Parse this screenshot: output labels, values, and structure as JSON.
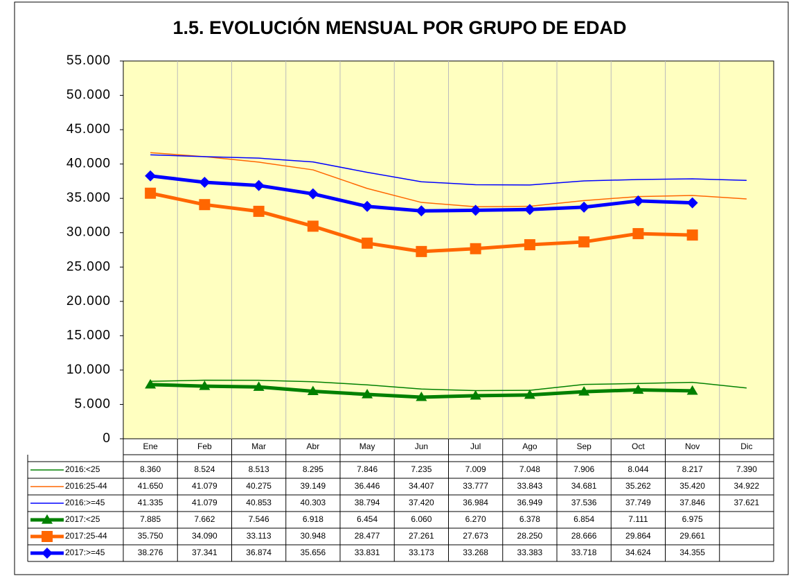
{
  "chart_data": {
    "type": "line",
    "title": "1.5. EVOLUCIÓN MENSUAL POR GRUPO DE EDAD",
    "categories": [
      "Ene",
      "Feb",
      "Mar",
      "Abr",
      "May",
      "Jun",
      "Jul",
      "Ago",
      "Sep",
      "Oct",
      "Nov",
      "Dic"
    ],
    "ylim": [
      0,
      55000
    ],
    "yticks": [
      0,
      {
        "value": 5000,
        "label": "5.000"
      },
      {
        "value": 10000,
        "label": "10.000"
      },
      {
        "value": 15000,
        "label": "15.000"
      },
      {
        "value": 20000,
        "label": "20.000"
      },
      {
        "value": 25000,
        "label": "25.000"
      },
      {
        "value": 30000,
        "label": "30.000"
      },
      {
        "value": 35000,
        "label": "35.000"
      },
      {
        "value": 40000,
        "label": "40.000"
      },
      {
        "value": 45000,
        "label": "45.000"
      },
      {
        "value": 50000,
        "label": "50.000"
      },
      {
        "value": 55000,
        "label": "55.000"
      }
    ],
    "grid": "vertical",
    "plot_background": "#ffffc0",
    "series": [
      {
        "name": "2016:<25",
        "color": "#008000",
        "line_width": 1.5,
        "marker": null,
        "values": [
          8360,
          8524,
          8513,
          8295,
          7846,
          7235,
          7009,
          7048,
          7906,
          8044,
          8217,
          7390
        ],
        "value_labels": [
          "8.360",
          "8.524",
          "8.513",
          "8.295",
          "7.846",
          "7.235",
          "7.009",
          "7.048",
          "7.906",
          "8.044",
          "8.217",
          "7.390"
        ]
      },
      {
        "name": "2016:25-44",
        "color": "#ff6600",
        "line_width": 1.5,
        "marker": null,
        "values": [
          41650,
          41079,
          40275,
          39149,
          36446,
          34407,
          33777,
          33843,
          34681,
          35262,
          35420,
          34922
        ],
        "value_labels": [
          "41.650",
          "41.079",
          "40.275",
          "39.149",
          "36.446",
          "34.407",
          "33.777",
          "33.843",
          "34.681",
          "35.262",
          "35.420",
          "34.922"
        ]
      },
      {
        "name": "2016:>=45",
        "color": "#0000ff",
        "line_width": 1.5,
        "marker": null,
        "values": [
          41335,
          41079,
          40853,
          40303,
          38794,
          37420,
          36984,
          36949,
          37536,
          37749,
          37846,
          37621
        ],
        "value_labels": [
          "41.335",
          "41.079",
          "40.853",
          "40.303",
          "38.794",
          "37.420",
          "36.984",
          "36.949",
          "37.536",
          "37.749",
          "37.846",
          "37.621"
        ]
      },
      {
        "name": "2017:<25",
        "color": "#008000",
        "line_width": 5,
        "marker": "triangle",
        "values": [
          7885,
          7662,
          7546,
          6918,
          6454,
          6060,
          6270,
          6378,
          6854,
          7111,
          6975,
          null
        ],
        "value_labels": [
          "7.885",
          "7.662",
          "7.546",
          "6.918",
          "6.454",
          "6.060",
          "6.270",
          "6.378",
          "6.854",
          "7.111",
          "6.975",
          null
        ]
      },
      {
        "name": "2017:25-44",
        "color": "#ff6600",
        "line_width": 5,
        "marker": "square",
        "values": [
          35750,
          34090,
          33113,
          30948,
          28477,
          27261,
          27673,
          28250,
          28666,
          29864,
          29661,
          null
        ],
        "value_labels": [
          "35.750",
          "34.090",
          "33.113",
          "30.948",
          "28.477",
          "27.261",
          "27.673",
          "28.250",
          "28.666",
          "29.864",
          "29.661",
          null
        ]
      },
      {
        "name": "2017:>=45",
        "color": "#0000ff",
        "line_width": 5,
        "marker": "diamond",
        "values": [
          38276,
          37341,
          36874,
          35656,
          33831,
          33173,
          33268,
          33383,
          33718,
          34624,
          34355,
          null
        ],
        "value_labels": [
          "38.276",
          "37.341",
          "36.874",
          "35.656",
          "33.831",
          "33.173",
          "33.268",
          "33.383",
          "33.718",
          "34.624",
          "34.355",
          null
        ]
      }
    ]
  }
}
